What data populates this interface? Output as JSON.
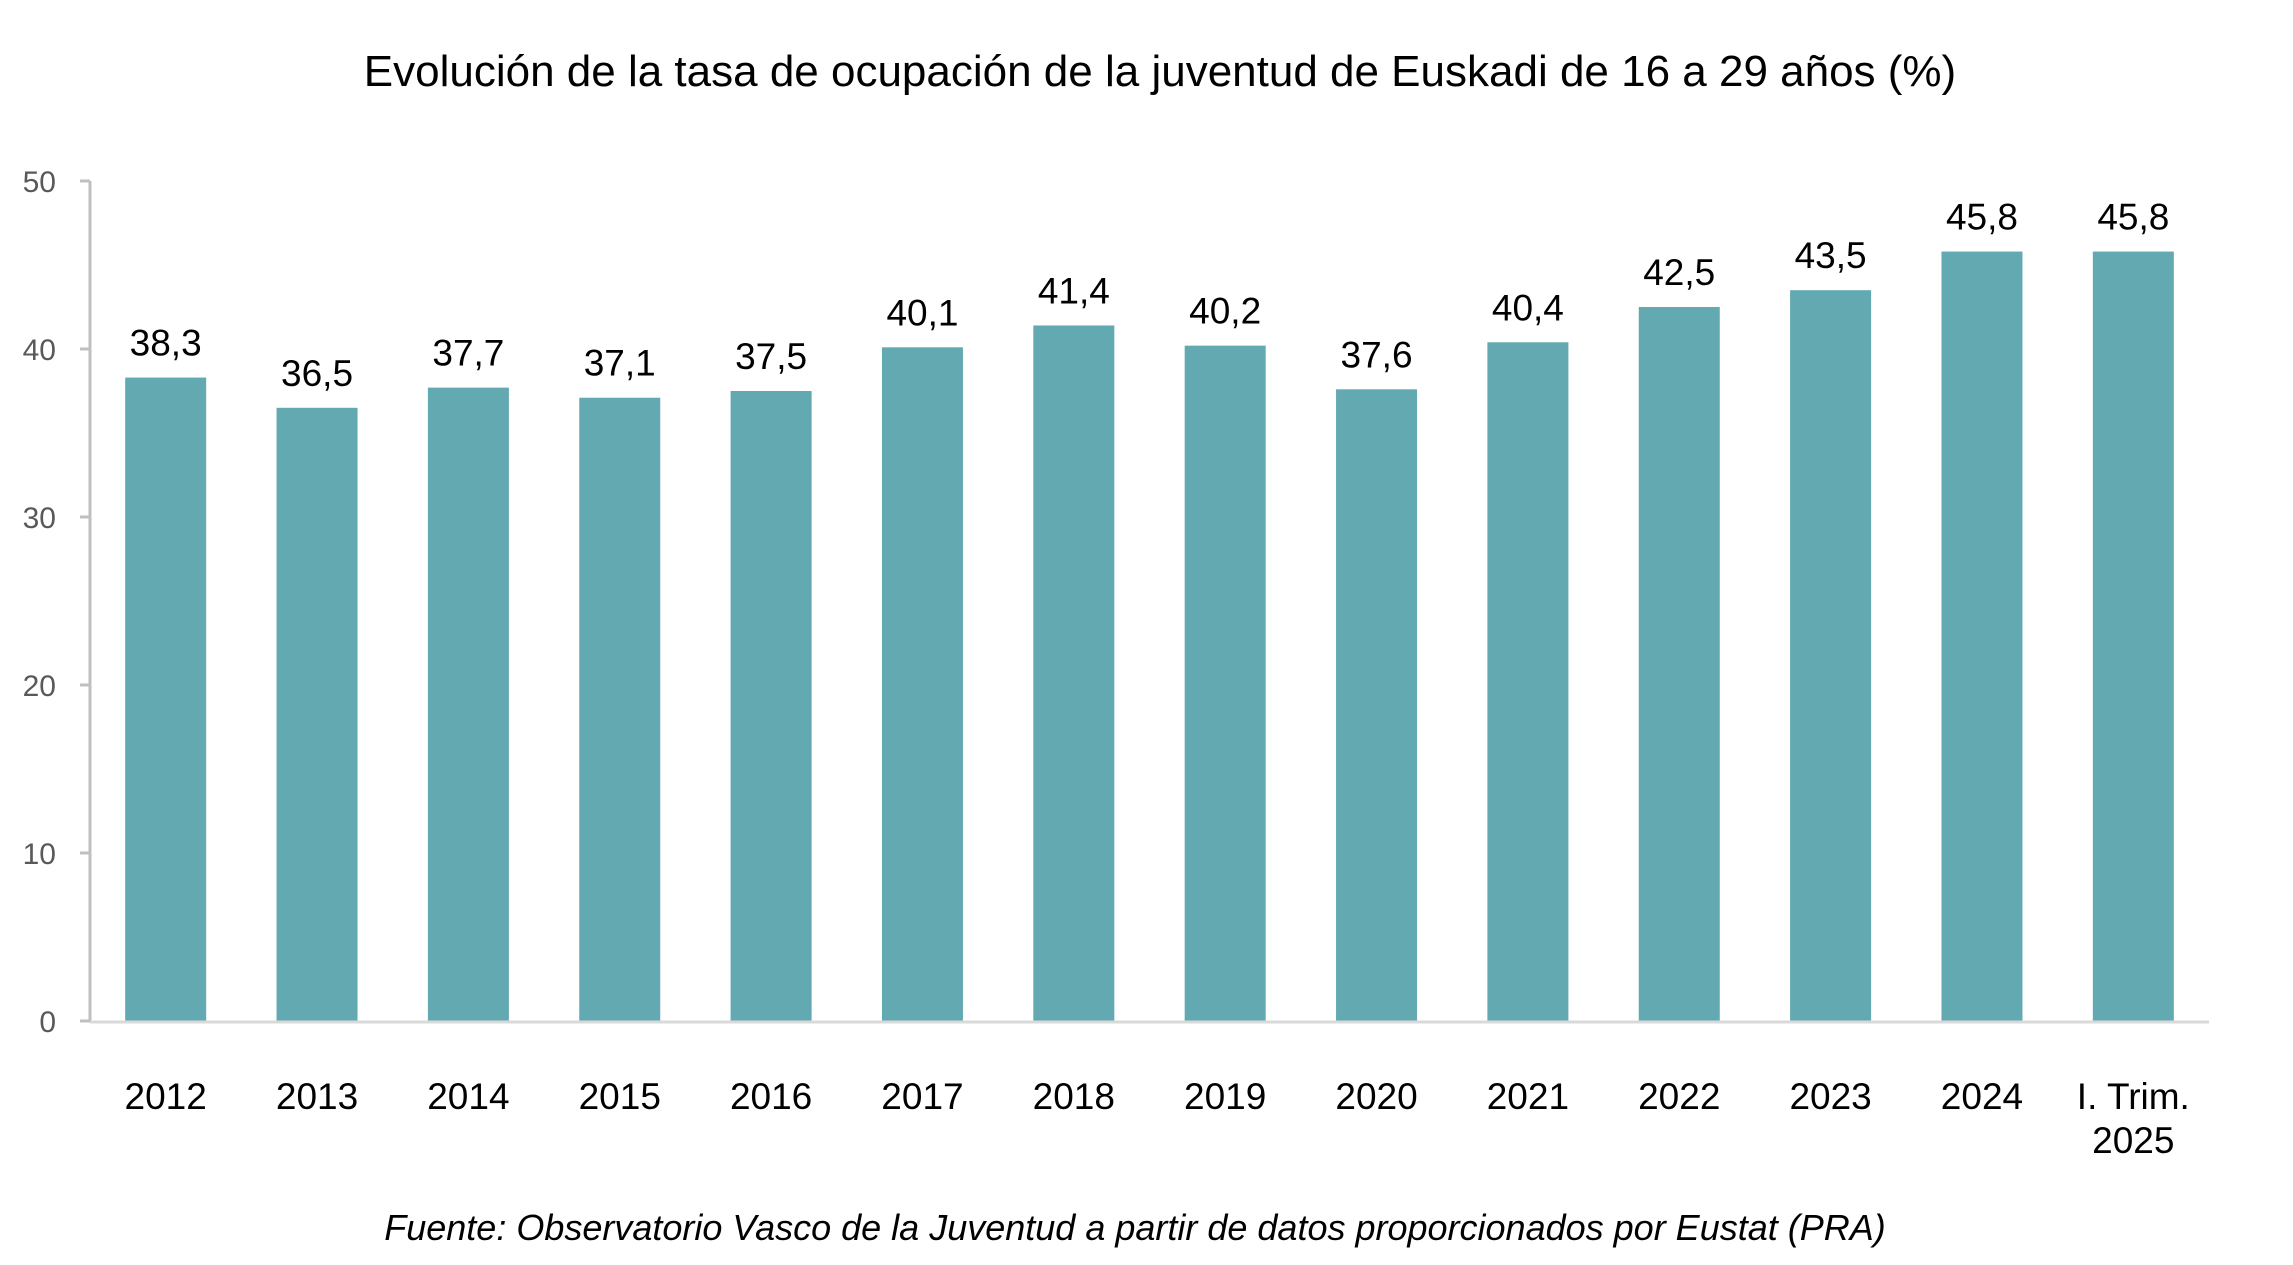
{
  "chart_data": {
    "type": "bar",
    "title": "Evolución de la tasa de ocupación de la juventud de Euskadi de 16 a 29 años (%)",
    "categories": [
      "2012",
      "2013",
      "2014",
      "2015",
      "2016",
      "2017",
      "2018",
      "2019",
      "2020",
      "2021",
      "2022",
      "2023",
      "2024",
      "I. Trim. 2025"
    ],
    "category_lines": [
      [
        "2012"
      ],
      [
        "2013"
      ],
      [
        "2014"
      ],
      [
        "2015"
      ],
      [
        "2016"
      ],
      [
        "2017"
      ],
      [
        "2018"
      ],
      [
        "2019"
      ],
      [
        "2020"
      ],
      [
        "2021"
      ],
      [
        "2022"
      ],
      [
        "2023"
      ],
      [
        "2024"
      ],
      [
        "I. Trim.",
        "2025"
      ]
    ],
    "values": [
      38.3,
      36.5,
      37.7,
      37.1,
      37.5,
      40.1,
      41.4,
      40.2,
      37.6,
      40.4,
      42.5,
      43.5,
      45.8,
      45.8
    ],
    "data_labels": [
      "38,3",
      "36,5",
      "37,7",
      "37,1",
      "37,5",
      "40,1",
      "41,4",
      "40,2",
      "37,6",
      "40,4",
      "42,5",
      "43,5",
      "45,8",
      "45,8"
    ],
    "ylim": [
      0,
      50
    ],
    "yticks": [
      0,
      10,
      20,
      30,
      40,
      50
    ],
    "xlabel": "",
    "ylabel": "",
    "grid": false,
    "legend": "none",
    "bar_color": "#63A9B1",
    "axis_color": "#BFBFBF",
    "source": "Fuente: Observatorio Vasco de la Juventud a partir de datos proporcionados por Eustat  (PRA)"
  }
}
